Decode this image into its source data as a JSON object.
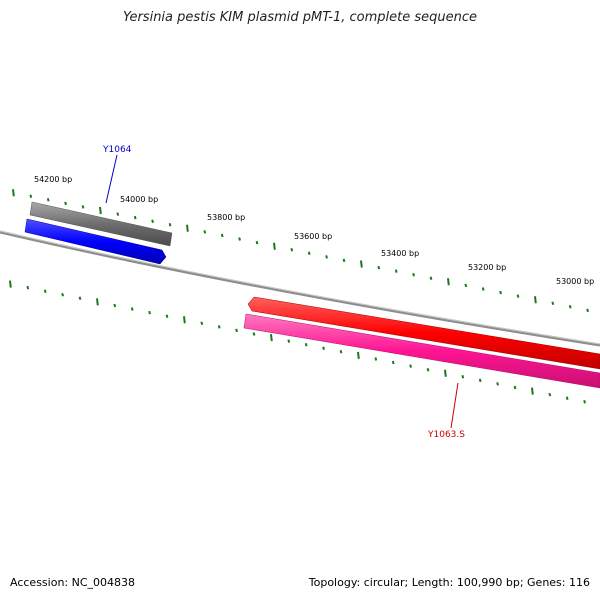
{
  "title": "Yersinia pestis KIM plasmid pMT-1, complete sequence",
  "footer": {
    "accession_label": "Accession:",
    "accession": "NC_004838",
    "topology_label": "Topology:",
    "topology": "circular",
    "length_label": "Length:",
    "length": "100,990 bp",
    "genes_label": "Genes:",
    "genes": "116"
  },
  "colors": {
    "backbone": "#808080",
    "tick": "#1a7a1a",
    "gray_feature": "#6e6e6e",
    "blue_feature": "#0000ff",
    "red_feature": "#ff0000",
    "pink_feature": "#ff1493",
    "label_blue": "#0000cc",
    "label_red": "#cc0000"
  },
  "map": {
    "tick_labels": [
      "54200 bp",
      "54000 bp",
      "53800 bp",
      "53600 bp",
      "53400 bp",
      "53200 bp",
      "53000 bp"
    ],
    "features": [
      {
        "name": "gray-feature-bar",
        "color_key": "gray_feature"
      },
      {
        "name": "blue-gene-arrow",
        "color_key": "blue_feature"
      },
      {
        "name": "red-gene-arrow",
        "color_key": "red_feature"
      },
      {
        "name": "pink-gene-bar",
        "color_key": "pink_feature"
      }
    ],
    "gene_labels": [
      {
        "text": "Y1064",
        "color_key": "label_blue"
      },
      {
        "text": "Y1063.S",
        "color_key": "label_red"
      }
    ]
  }
}
